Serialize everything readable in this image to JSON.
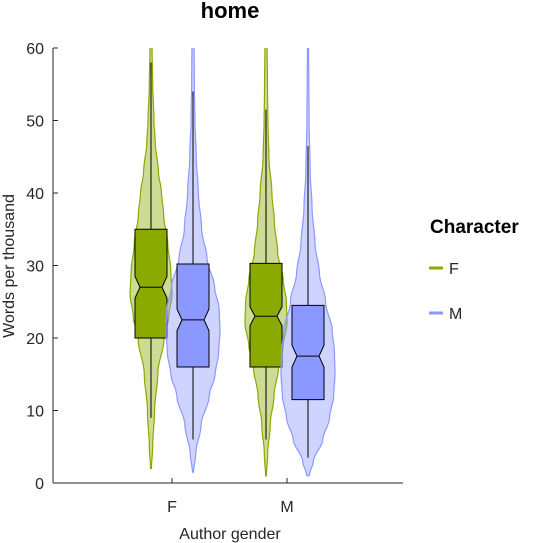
{
  "chart_data": {
    "type": "violin",
    "title": "home",
    "xlabel": "Author gender",
    "ylabel": "Words per thousand",
    "categories": [
      "F",
      "M"
    ],
    "ylim": [
      0,
      60
    ],
    "yticks": [
      0,
      10,
      20,
      30,
      40,
      50,
      60
    ],
    "grid": false,
    "legend": {
      "title": "Character",
      "position": "right",
      "entries": [
        {
          "label": "F",
          "color": "#8aaa00"
        },
        {
          "label": "M",
          "color": "#8a98ff"
        }
      ]
    },
    "series": [
      {
        "name": "F",
        "color": "#8aaa00",
        "groups": [
          {
            "category": "F",
            "box": {
              "q1": 20,
              "median": 27,
              "q3": 35,
              "notch_low": 25.5,
              "notch_high": 28.5,
              "whisker_low": 9,
              "whisker_high": 58
            },
            "violin": {
              "min": 2,
              "max": 60,
              "profile": [
                [
                  2,
                  0.02
                ],
                [
                  5,
                  0.08
                ],
                [
                  10,
                  0.17
                ],
                [
                  15,
                  0.32
                ],
                [
                  20,
                  0.62
                ],
                [
                  23,
                  0.85
                ],
                [
                  26,
                  1.0
                ],
                [
                  29,
                  0.95
                ],
                [
                  33,
                  0.8
                ],
                [
                  37,
                  0.6
                ],
                [
                  40,
                  0.5
                ],
                [
                  43,
                  0.35
                ],
                [
                  47,
                  0.2
                ],
                [
                  50,
                  0.14
                ],
                [
                  55,
                  0.08
                ],
                [
                  60,
                  0.05
                ]
              ]
            }
          },
          {
            "category": "M",
            "box": {
              "q1": 16,
              "median": 23,
              "q3": 30.3,
              "notch_low": 21.7,
              "notch_high": 24.3,
              "whisker_low": 6,
              "whisker_high": 51.5
            },
            "violin": {
              "min": 1,
              "max": 60,
              "profile": [
                [
                  1,
                  0.02
                ],
                [
                  4,
                  0.08
                ],
                [
                  8,
                  0.2
                ],
                [
                  12,
                  0.38
                ],
                [
                  16,
                  0.6
                ],
                [
                  19,
                  0.82
                ],
                [
                  22,
                  1.0
                ],
                [
                  25,
                  0.97
                ],
                [
                  28,
                  0.82
                ],
                [
                  32,
                  0.55
                ],
                [
                  36,
                  0.4
                ],
                [
                  40,
                  0.28
                ],
                [
                  45,
                  0.14
                ],
                [
                  50,
                  0.09
                ],
                [
                  55,
                  0.07
                ],
                [
                  60,
                  0.05
                ]
              ]
            }
          }
        ]
      },
      {
        "name": "M",
        "color": "#8a98ff",
        "groups": [
          {
            "category": "F",
            "box": {
              "q1": 16,
              "median": 22.5,
              "q3": 30.2,
              "notch_low": 21,
              "notch_high": 24,
              "whisker_low": 6,
              "whisker_high": 54
            },
            "violin": {
              "min": 1.5,
              "max": 60,
              "profile": [
                [
                  1.5,
                  0.02
                ],
                [
                  4,
                  0.1
                ],
                [
                  8,
                  0.3
                ],
                [
                  12,
                  0.6
                ],
                [
                  15,
                  0.82
                ],
                [
                  18,
                  0.95
                ],
                [
                  21,
                  1.0
                ],
                [
                  24,
                  0.97
                ],
                [
                  27,
                  0.8
                ],
                [
                  31,
                  0.52
                ],
                [
                  35,
                  0.32
                ],
                [
                  40,
                  0.2
                ],
                [
                  45,
                  0.12
                ],
                [
                  50,
                  0.07
                ],
                [
                  55,
                  0.05
                ],
                [
                  60,
                  0.04
                ]
              ]
            }
          },
          {
            "category": "M",
            "box": {
              "q1": 11.5,
              "median": 17.5,
              "q3": 24.5,
              "notch_low": 16,
              "notch_high": 19,
              "whisker_low": 3.5,
              "whisker_high": 46.5
            },
            "violin": {
              "min": 1,
              "max": 60,
              "profile": [
                [
                  1,
                  0.04
                ],
                [
                  3,
                  0.2
                ],
                [
                  6,
                  0.55
                ],
                [
                  9,
                  0.8
                ],
                [
                  12,
                  0.95
                ],
                [
                  15,
                  1.0
                ],
                [
                  18,
                  0.98
                ],
                [
                  21,
                  0.9
                ],
                [
                  25,
                  0.65
                ],
                [
                  29,
                  0.42
                ],
                [
                  33,
                  0.26
                ],
                [
                  38,
                  0.15
                ],
                [
                  43,
                  0.08
                ],
                [
                  50,
                  0.04
                ],
                [
                  55,
                  0.03
                ],
                [
                  60,
                  0.02
                ]
              ]
            }
          }
        ]
      }
    ]
  }
}
